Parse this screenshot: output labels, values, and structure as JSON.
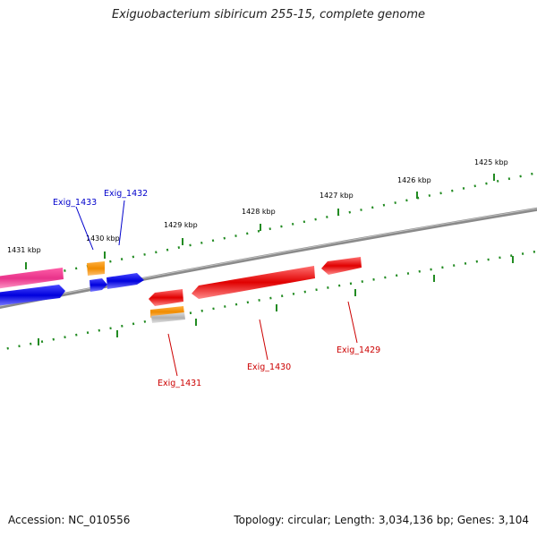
{
  "title": "Exiguobacterium sibiricum 255-15, complete genome",
  "footer": {
    "accession": "Accession: NC_010556",
    "summary": "Topology: circular; Length: 3,034,136 bp; Genes: 3,104"
  },
  "scale_labels": [
    "1425 kbp",
    "1426 kbp",
    "1427 kbp",
    "1428 kbp",
    "1429 kbp",
    "1430 kbp",
    "1431 kbp"
  ],
  "gene_labels": {
    "exig_1433": "Exig_1433",
    "exig_1432": "Exig_1432",
    "exig_1431": "Exig_1431",
    "exig_1430": "Exig_1430",
    "exig_1429": "Exig_1429"
  },
  "colors": {
    "backbone": "#808080",
    "tick": "#228b22",
    "cds_red": "#e00000",
    "cds_blue": "#0000dd",
    "cds_pink": "#e8338a",
    "cds_orange": "#f08c00",
    "cds_gray": "#b8b8b8",
    "label_blue": "#0000cc",
    "label_red": "#cc0000"
  }
}
